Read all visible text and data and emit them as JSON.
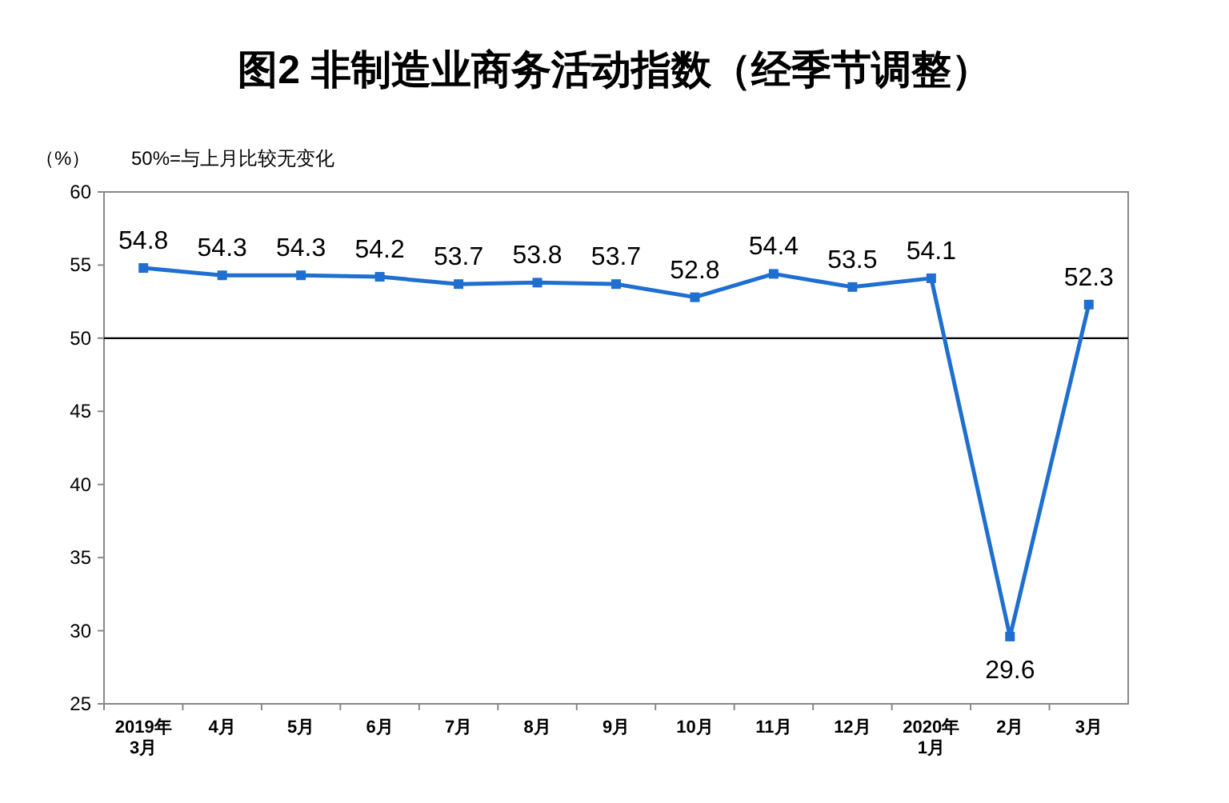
{
  "chart_data": {
    "type": "line",
    "title": "图2 非制造业商务活动指数（经季节调整）",
    "ylabel": "（%）",
    "annotations": [
      "50%=与上月比较无变化"
    ],
    "categories": [
      "2019年\n3月",
      "4月",
      "5月",
      "6月",
      "7月",
      "8月",
      "9月",
      "10月",
      "11月",
      "12月",
      "2020年\n1月",
      "2月",
      "3月"
    ],
    "series": [
      {
        "color": "#1f6fd0",
        "values": [
          54.8,
          54.3,
          54.3,
          54.2,
          53.7,
          53.8,
          53.7,
          52.8,
          54.4,
          53.5,
          54.1,
          29.6,
          52.3
        ]
      }
    ],
    "ylim": [
      25,
      60
    ],
    "yticks": [
      25,
      30,
      35,
      40,
      45,
      50,
      55,
      60
    ],
    "ref_lines": [
      {
        "axis": "y",
        "value": 50,
        "color": "#000000"
      }
    ],
    "data_labels": true,
    "marker": "square",
    "line_style": "solid",
    "grid": false
  }
}
